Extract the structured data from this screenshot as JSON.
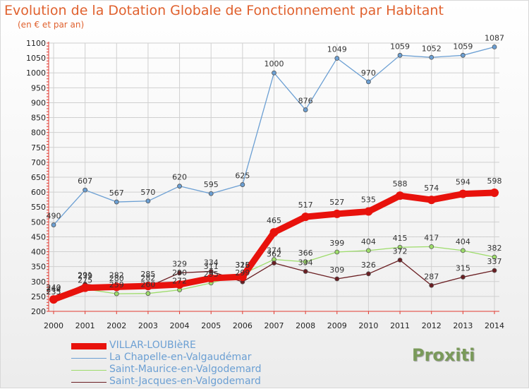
{
  "title": "Evolution de la Dotation Globale de Fonctionnement par Habitant",
  "subtitle": "(en € et par an)",
  "logo": "Proxiti",
  "colors": {
    "title": "#e0612e",
    "series": [
      "#e8120c",
      "#6b9fd3",
      "#9ddc6a",
      "#6a1e22"
    ],
    "axis": "#e23a31",
    "grid": "#d0d0d0"
  },
  "chart_data": {
    "type": "line",
    "title": "Evolution de la Dotation Globale de Fonctionnement par Habitant",
    "subtitle": "(en € et par an)",
    "xlabel": "",
    "ylabel": "",
    "ylim": [
      200,
      1100
    ],
    "ytick_step": 50,
    "grid": true,
    "legend": "bottom-left",
    "x": [
      2000,
      2001,
      2002,
      2003,
      2004,
      2005,
      2006,
      2007,
      2008,
      2009,
      2010,
      2011,
      2012,
      2013,
      2014
    ],
    "series": [
      {
        "name": "VILLAR-LOUBIèRE",
        "color": "#e8120c",
        "values": [
          240,
          279,
          282,
          285,
          290,
          311,
          316,
          465,
          517,
          527,
          535,
          588,
          574,
          594,
          598
        ]
      },
      {
        "name": "La Chapelle-en-Valgaudémar",
        "color": "#6b9fd3",
        "values": [
          490,
          607,
          567,
          570,
          620,
          595,
          625,
          1000,
          876,
          1049,
          970,
          1059,
          1052,
          1059,
          1087
        ]
      },
      {
        "name": "Saint-Maurice-en-Valgodemard",
        "color": "#9ddc6a",
        "values": [
          235,
          275,
          259,
          260,
          272,
          295,
          325,
          374,
          366,
          399,
          404,
          415,
          417,
          404,
          382
        ]
      },
      {
        "name": "Saint-Jacques-en-Valgodemard",
        "color": "#6a1e22",
        "values": [
          244,
          291,
          280,
          282,
          329,
          334,
          299,
          362,
          334,
          309,
          326,
          372,
          287,
          315,
          337
        ]
      }
    ]
  }
}
